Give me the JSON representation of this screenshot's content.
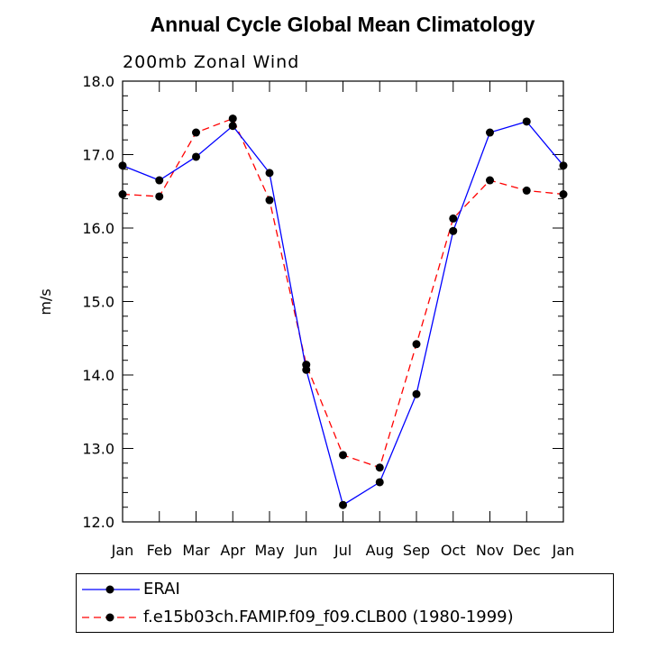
{
  "chart_data": {
    "type": "line",
    "title": "Annual Cycle Global Mean Climatology",
    "subtitle": "200mb Zonal Wind",
    "xlabel": "",
    "ylabel": "m/s",
    "categories": [
      "Jan",
      "Feb",
      "Mar",
      "Apr",
      "May",
      "Jun",
      "Jul",
      "Aug",
      "Sep",
      "Oct",
      "Nov",
      "Dec",
      "Jan"
    ],
    "yticks": [
      "12.0",
      "13.0",
      "14.0",
      "15.0",
      "16.0",
      "17.0",
      "18.0"
    ],
    "ylim": [
      12.0,
      18.0
    ],
    "grid": false,
    "legend_position": "bottom",
    "series": [
      {
        "name": "ERAI",
        "color": "#0000ff",
        "dash": "solid",
        "values": [
          16.85,
          16.65,
          16.97,
          17.39,
          16.75,
          14.07,
          12.23,
          12.54,
          13.74,
          15.96,
          17.3,
          17.45,
          16.85
        ]
      },
      {
        "name": "f.e15b03ch.FAMIP.f09_f09.CLB00 (1980-1999)",
        "color": "#ff0000",
        "dash": "dashed",
        "values": [
          16.46,
          16.43,
          17.3,
          17.49,
          16.38,
          14.14,
          12.91,
          12.74,
          14.42,
          16.13,
          16.65,
          16.51,
          16.46
        ]
      }
    ]
  }
}
